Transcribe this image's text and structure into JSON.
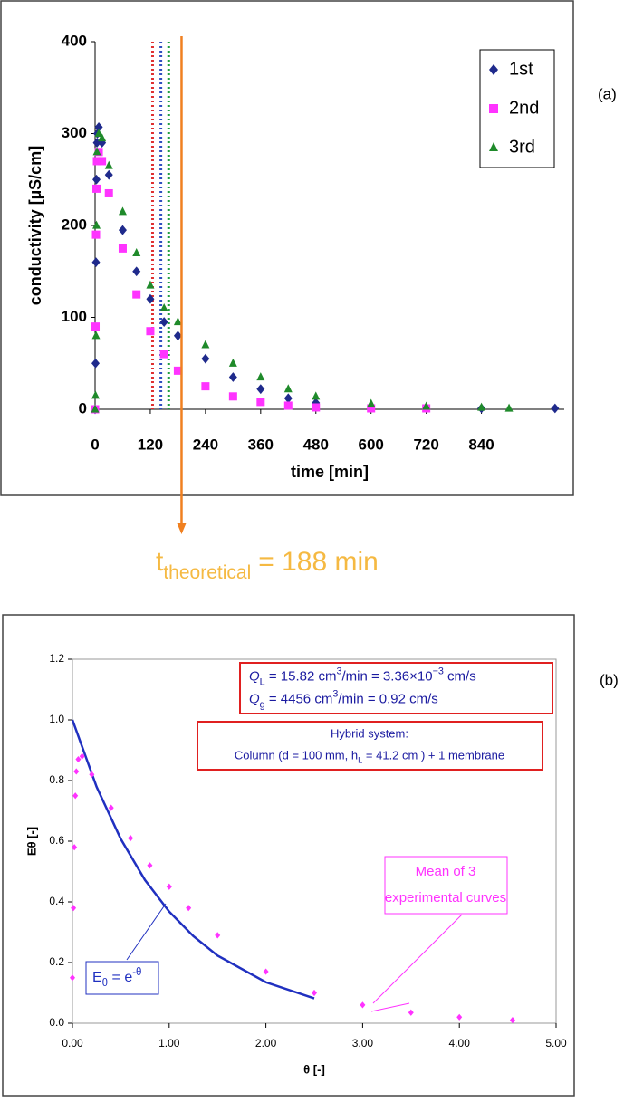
{
  "chart_data": [
    {
      "type": "scatter",
      "panel_label": "(a)",
      "xlabel": "time [min]",
      "ylabel": "conductivity [µS/cm]",
      "xlim": [
        0,
        1020
      ],
      "ylim": [
        0,
        400
      ],
      "xticks": [
        0,
        120,
        240,
        360,
        480,
        600,
        720,
        840
      ],
      "yticks": [
        0,
        100,
        200,
        300,
        400
      ],
      "legend": "upper right",
      "series": [
        {
          "name": "1st",
          "color": "#1f2a8c",
          "marker": "diamond",
          "x": [
            0,
            1,
            2,
            3,
            4,
            5,
            8,
            15,
            30,
            60,
            90,
            120,
            150,
            180,
            240,
            300,
            360,
            420,
            480,
            600,
            720,
            840,
            1000
          ],
          "values": [
            0,
            50,
            160,
            250,
            290,
            300,
            307,
            290,
            255,
            195,
            150,
            120,
            95,
            80,
            55,
            35,
            22,
            12,
            7,
            3,
            2,
            1,
            1
          ]
        },
        {
          "name": "2nd",
          "color": "#ff33ff",
          "marker": "square",
          "x": [
            0,
            1,
            2,
            3,
            4,
            8,
            15,
            30,
            60,
            90,
            120,
            150,
            180,
            240,
            300,
            360,
            420,
            480,
            600,
            720
          ],
          "values": [
            0,
            90,
            190,
            240,
            270,
            280,
            270,
            235,
            175,
            125,
            85,
            60,
            42,
            25,
            14,
            8,
            4,
            2,
            1,
            1
          ]
        },
        {
          "name": "3rd",
          "color": "#1f8a2a",
          "marker": "triangle",
          "x": [
            0,
            1,
            2,
            3,
            4,
            8,
            15,
            30,
            60,
            90,
            120,
            150,
            180,
            240,
            300,
            360,
            420,
            480,
            600,
            720,
            840,
            900
          ],
          "values": [
            0,
            15,
            80,
            200,
            280,
            300,
            295,
            265,
            215,
            170,
            135,
            110,
            95,
            70,
            50,
            35,
            22,
            14,
            6,
            3,
            2,
            1
          ]
        }
      ],
      "vlines": [
        {
          "value": 125,
          "color": "#e03030"
        },
        {
          "value": 143,
          "color": "#3050c0"
        },
        {
          "value": 160,
          "color": "#20a040"
        }
      ],
      "annotation": {
        "symbol": "t",
        "subscript": "theoretical",
        "value": 188,
        "label": "= 188 min",
        "color": "#f5b942",
        "line_color": "#f08020"
      }
    },
    {
      "type": "scatter",
      "panel_label": "(b)",
      "xlabel": "θ [-]",
      "ylabel": "Eθ [-]",
      "xlim": [
        0,
        5
      ],
      "ylim": [
        0,
        1.2
      ],
      "xticks": [
        {
          "value": 0,
          "label": "0.00"
        },
        {
          "value": 1,
          "label": "1.00"
        },
        {
          "value": 2,
          "label": "2.00"
        },
        {
          "value": 3,
          "label": "3.00"
        },
        {
          "value": 4,
          "label": "4.00"
        },
        {
          "value": 5,
          "label": "5.00"
        }
      ],
      "yticks": [
        {
          "value": 0,
          "label": "0.0"
        },
        {
          "value": 0.2,
          "label": "0.2"
        },
        {
          "value": 0.4,
          "label": "0.4"
        },
        {
          "value": 0.6,
          "label": "0.6"
        },
        {
          "value": 0.8,
          "label": "0.8"
        },
        {
          "value": 1,
          "label": "1.0"
        },
        {
          "value": 1.2,
          "label": "1.2"
        }
      ],
      "series": [
        {
          "color": "#2030c0",
          "marker": "line",
          "x": [
            0,
            0.25,
            0.5,
            0.75,
            1,
            1.25,
            1.5,
            2,
            2.5
          ],
          "values": [
            1,
            0.779,
            0.607,
            0.472,
            0.368,
            0.287,
            0.223,
            0.135,
            0.082
          ]
        },
        {
          "color": "#ff33ff",
          "marker": "diamond",
          "x": [
            0,
            0.01,
            0.02,
            0.03,
            0.04,
            0.06,
            0.1,
            0.2,
            0.4,
            0.6,
            0.8,
            1.0,
            1.2,
            1.5,
            2.0,
            2.5,
            3.0,
            3.5,
            4.0,
            4.55
          ],
          "values": [
            0.15,
            0.38,
            0.58,
            0.75,
            0.83,
            0.87,
            0.88,
            0.82,
            0.71,
            0.61,
            0.52,
            0.45,
            0.38,
            0.29,
            0.17,
            0.1,
            0.06,
            0.035,
            0.02,
            0.01
          ]
        }
      ],
      "boxes": [
        {
          "color": "#1a1aa0",
          "border": "#e02020",
          "lines": [
            [
              {
                "text": "Q",
                "style": "italic"
              },
              {
                "text": "L",
                "style": "sub"
              },
              {
                "text": " = 15.82 cm"
              },
              {
                "text": "3",
                "style": "sup"
              },
              {
                "text": "/min = 3.36×10"
              },
              {
                "text": "−3",
                "style": "sup"
              },
              {
                "text": " cm/s"
              }
            ],
            [
              {
                "text": "Q",
                "style": "italic"
              },
              {
                "text": "g",
                "style": "sub"
              },
              {
                "text": " = 4456 cm"
              },
              {
                "text": "3",
                "style": "sup"
              },
              {
                "text": "/min = 0.92 cm/s"
              }
            ]
          ]
        },
        {
          "color": "#1a1aa0",
          "border": "#e02020",
          "lines": [
            [
              {
                "text": "Hybrid system:"
              }
            ],
            [
              {
                "text": "Column (d = 100 mm, h"
              },
              {
                "text": "L",
                "style": "sub"
              },
              {
                "text": " = 41.2 cm ) + 1 membrane"
              }
            ]
          ]
        },
        {
          "color": "#ff33ff",
          "border": "#ff33ff",
          "lines": [
            [
              {
                "text": "Mean of 3"
              }
            ],
            [
              {
                "text": "experimental curves"
              }
            ]
          ]
        },
        {
          "color": "#2030c0",
          "border": "#2030c0",
          "lines": [
            [
              {
                "text": "E"
              },
              {
                "text": "θ",
                "style": "sub"
              },
              {
                "text": " = e"
              },
              {
                "text": "-θ",
                "style": "sup"
              }
            ]
          ]
        }
      ]
    }
  ]
}
